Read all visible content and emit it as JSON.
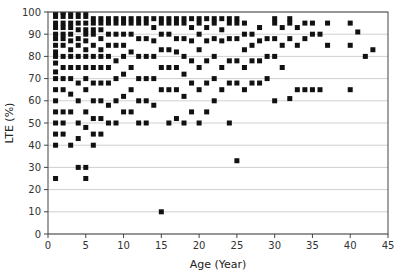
{
  "chart_data": {
    "type": "scatter",
    "xlabel": "Age (Year)",
    "ylabel": "LTE (%)",
    "x": [
      1,
      1,
      1,
      1,
      1,
      1,
      1,
      1,
      1,
      1,
      1,
      1,
      1,
      1,
      1,
      1,
      1,
      1,
      1,
      1,
      2,
      2,
      2,
      2,
      2,
      2,
      2,
      2,
      2,
      2,
      2,
      2,
      2,
      2,
      2,
      3,
      3,
      3,
      3,
      3,
      3,
      3,
      3,
      3,
      3,
      3,
      3,
      3,
      4,
      4,
      4,
      4,
      4,
      4,
      4,
      4,
      4,
      4,
      4,
      4,
      4,
      5,
      5,
      5,
      5,
      5,
      5,
      5,
      5,
      5,
      5,
      5,
      5,
      5,
      5,
      5,
      6,
      6,
      6,
      6,
      6,
      6,
      6,
      6,
      6,
      6,
      6,
      6,
      7,
      7,
      7,
      7,
      7,
      7,
      7,
      7,
      7,
      7,
      7,
      8,
      8,
      8,
      8,
      8,
      8,
      8,
      8,
      8,
      9,
      9,
      9,
      9,
      9,
      9,
      9,
      9,
      10,
      10,
      10,
      10,
      10,
      10,
      10,
      10,
      11,
      11,
      11,
      11,
      11,
      11,
      11,
      12,
      12,
      12,
      12,
      12,
      12,
      12,
      13,
      13,
      13,
      13,
      13,
      13,
      13,
      14,
      14,
      14,
      14,
      14,
      14,
      15,
      15,
      15,
      15,
      15,
      15,
      15,
      16,
      16,
      16,
      16,
      16,
      16,
      16,
      17,
      17,
      17,
      17,
      17,
      17,
      17,
      18,
      18,
      18,
      18,
      18,
      18,
      18,
      19,
      19,
      19,
      19,
      19,
      19,
      20,
      20,
      20,
      20,
      20,
      20,
      20,
      21,
      21,
      21,
      21,
      21,
      21,
      22,
      22,
      22,
      22,
      22,
      22,
      23,
      23,
      23,
      23,
      23,
      24,
      24,
      24,
      24,
      24,
      24,
      25,
      25,
      25,
      25,
      25,
      25,
      26,
      26,
      26,
      26,
      26,
      27,
      27,
      27,
      27,
      28,
      28,
      28,
      28,
      29,
      29,
      29,
      30,
      30,
      30,
      30,
      30,
      31,
      31,
      31,
      32,
      32,
      32,
      32,
      33,
      33,
      33,
      34,
      34,
      34,
      35,
      35,
      35,
      36,
      36,
      37,
      37,
      40,
      40,
      40,
      41,
      42,
      43
    ],
    "values": [
      100,
      100,
      98,
      95,
      93,
      90,
      88,
      85,
      82,
      80,
      77,
      73,
      70,
      65,
      60,
      55,
      50,
      45,
      40,
      25,
      100,
      100,
      98,
      95,
      93,
      90,
      88,
      85,
      80,
      75,
      70,
      65,
      55,
      50,
      45,
      100,
      98,
      95,
      93,
      90,
      87,
      83,
      80,
      75,
      70,
      63,
      55,
      40,
      100,
      98,
      95,
      92,
      88,
      85,
      80,
      75,
      68,
      60,
      50,
      43,
      30,
      100,
      98,
      95,
      92,
      90,
      87,
      83,
      80,
      75,
      70,
      65,
      55,
      48,
      30,
      25,
      97,
      95,
      92,
      90,
      85,
      80,
      75,
      68,
      60,
      52,
      45,
      40,
      97,
      95,
      92,
      88,
      83,
      80,
      75,
      68,
      60,
      52,
      45,
      97,
      95,
      90,
      85,
      80,
      75,
      68,
      58,
      50,
      97,
      95,
      90,
      85,
      78,
      70,
      60,
      50,
      97,
      95,
      90,
      85,
      80,
      72,
      62,
      55,
      97,
      95,
      90,
      82,
      75,
      65,
      55,
      97,
      95,
      88,
      80,
      70,
      60,
      50,
      97,
      95,
      88,
      80,
      70,
      60,
      50,
      97,
      93,
      87,
      80,
      70,
      58,
      97,
      95,
      90,
      83,
      75,
      65,
      10,
      97,
      95,
      90,
      83,
      75,
      65,
      50,
      97,
      95,
      88,
      82,
      75,
      65,
      52,
      97,
      95,
      88,
      80,
      72,
      62,
      50,
      97,
      93,
      87,
      78,
      68,
      55,
      97,
      95,
      90,
      83,
      75,
      65,
      50,
      97,
      93,
      87,
      78,
      68,
      55,
      97,
      95,
      88,
      80,
      70,
      60,
      97,
      92,
      87,
      75,
      65,
      97,
      95,
      88,
      78,
      68,
      50,
      97,
      95,
      88,
      78,
      68,
      33,
      95,
      90,
      83,
      75,
      65,
      90,
      85,
      78,
      68,
      93,
      87,
      78,
      68,
      88,
      80,
      70,
      97,
      95,
      88,
      80,
      60,
      93,
      85,
      75,
      97,
      95,
      88,
      61,
      93,
      85,
      65,
      95,
      88,
      65,
      95,
      90,
      65,
      90,
      65,
      95,
      85,
      95,
      85,
      65,
      91,
      80,
      83
    ],
    "xlim": [
      0,
      45
    ],
    "ylim": [
      0,
      100
    ],
    "xticks": [
      0,
      5,
      10,
      15,
      20,
      25,
      30,
      35,
      40,
      45
    ],
    "yticks": [
      0,
      10,
      20,
      30,
      40,
      50,
      60,
      70,
      80,
      90,
      100
    ],
    "grid": true,
    "marker": "square",
    "color": "#111111"
  }
}
